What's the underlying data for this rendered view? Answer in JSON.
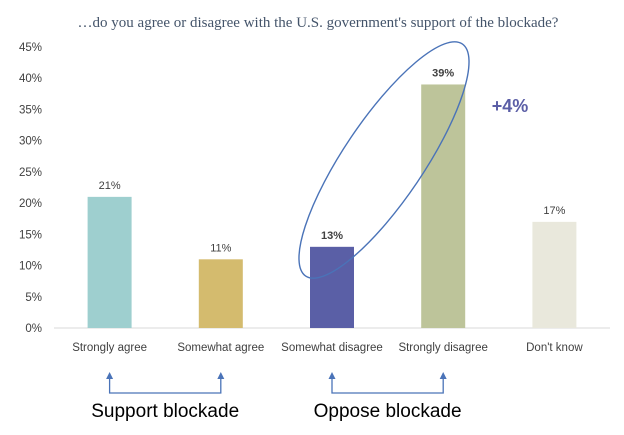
{
  "chart_data": {
    "type": "bar",
    "title": "…do you agree or disagree with the U.S. government's support of the blockade?",
    "categories": [
      "Strongly agree",
      "Somewhat agree",
      "Somewhat disagree",
      "Strongly disagree",
      "Don't know"
    ],
    "values": [
      21,
      11,
      13,
      39,
      17
    ],
    "data_labels": [
      "21%",
      "11%",
      "13%",
      "39%",
      "17%"
    ],
    "colors": [
      "#9ecfcf",
      "#d4bb6e",
      "#5a5fa6",
      "#bdc49a",
      "#e9e8dc"
    ],
    "ylim": [
      0,
      45
    ],
    "yticks": [
      "0%",
      "5%",
      "10%",
      "15%",
      "20%",
      "25%",
      "30%",
      "35%",
      "40%",
      "45%"
    ],
    "grid": false,
    "annotation": "+4%",
    "annotation_color": "#5b5ea6"
  },
  "groups": [
    {
      "label": "Support blockade",
      "categories": [
        0,
        1
      ]
    },
    {
      "label": "Oppose blockade",
      "categories": [
        2,
        3
      ]
    }
  ]
}
